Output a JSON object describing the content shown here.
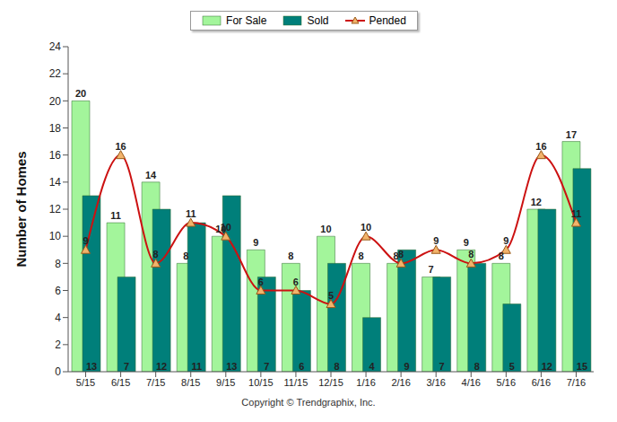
{
  "chart_data": {
    "type": "bar",
    "y_label": "Number of Homes",
    "caption": "Copyright © Trendgraphix, Inc.",
    "categories": [
      "5/15",
      "6/15",
      "7/15",
      "8/15",
      "9/15",
      "10/15",
      "11/15",
      "12/15",
      "1/16",
      "2/16",
      "3/16",
      "4/16",
      "5/16",
      "6/16",
      "7/16"
    ],
    "series": [
      {
        "name": "For Sale",
        "type": "bar",
        "color": "#a3f59b",
        "values": [
          20,
          11,
          14,
          8,
          10,
          9,
          8,
          10,
          8,
          8,
          7,
          9,
          8,
          12,
          17
        ]
      },
      {
        "name": "Sold",
        "type": "bar",
        "color": "#007f7a",
        "values": [
          13,
          7,
          12,
          11,
          13,
          7,
          6,
          8,
          4,
          9,
          7,
          8,
          5,
          12,
          15
        ]
      },
      {
        "name": "Pended",
        "type": "line",
        "color": "#cc1111",
        "marker": "triangle",
        "line_style": "smooth",
        "values": [
          9,
          16,
          8,
          11,
          10,
          6,
          6,
          5,
          10,
          8,
          9,
          8,
          9,
          16,
          11
        ]
      }
    ],
    "ylim": [
      0,
      24
    ],
    "yticks": [
      0,
      2,
      4,
      6,
      8,
      10,
      12,
      14,
      16,
      18,
      20,
      22,
      24
    ],
    "grid": false,
    "legend": "top",
    "data_labels": true
  }
}
